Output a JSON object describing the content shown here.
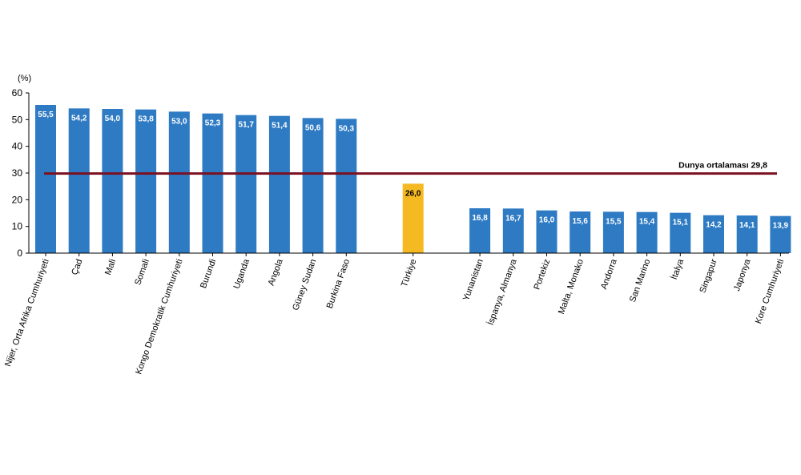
{
  "chart_data": {
    "type": "bar",
    "ylabel": "(%)",
    "ylim": [
      0,
      60
    ],
    "yticks": [
      0,
      10,
      20,
      30,
      40,
      50,
      60
    ],
    "categories": [
      "Nijer, Orta Afrika Cumhuriyeti",
      "Çad",
      "Mali",
      "Somali",
      "Kongo Demokratik Cumhuriyeti",
      "Burundi",
      "Uganda",
      "Angola",
      "Güney Sudan",
      "Burkina Faso",
      "Türkiye",
      "Yunanistan",
      "İspanya, Almanya",
      "Portekiz",
      "Malta, Monako",
      "Andorra",
      "San Marino",
      "İtalya",
      "Singapur",
      "Japonya",
      "Kore Cumhuriyeti"
    ],
    "values": [
      55.5,
      54.2,
      54.0,
      53.8,
      53.0,
      52.3,
      51.7,
      51.4,
      50.6,
      50.3,
      26.0,
      16.8,
      16.7,
      16.0,
      15.6,
      15.5,
      15.4,
      15.1,
      14.2,
      14.1,
      13.9
    ],
    "value_labels": [
      "55,5",
      "54,2",
      "54,0",
      "53,8",
      "53,0",
      "52,3",
      "51,7",
      "51,4",
      "50,6",
      "50,3",
      "26,0",
      "16,8",
      "16,7",
      "16,0",
      "15,6",
      "15,5",
      "15,4",
      "15,1",
      "14,2",
      "14,1",
      "13,9"
    ],
    "groups": [
      {
        "start": 0,
        "count": 10
      },
      {
        "start": 10,
        "count": 1
      },
      {
        "start": 11,
        "count": 10
      }
    ],
    "reference_line": {
      "label": "Dunya ortalaması",
      "value": 29.8,
      "value_label": "29,8"
    },
    "colors": {
      "bar": "#2E7BC4",
      "highlight": "#F5B921",
      "reference_line": "#7B1020"
    },
    "highlight_category": "Türkiye",
    "grid": false,
    "legend": "none"
  }
}
